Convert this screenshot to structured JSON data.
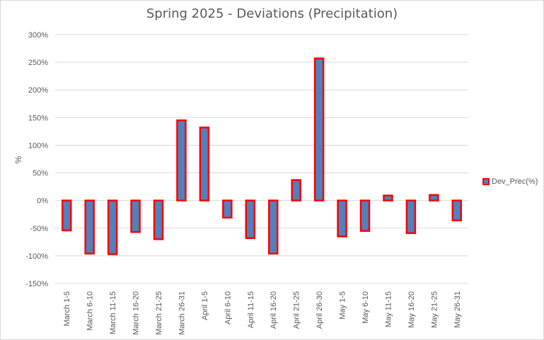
{
  "chart_data": {
    "type": "bar",
    "title": "Spring 2025 - Deviations (Precipitation)",
    "xlabel": "",
    "ylabel": "%",
    "ylim": [
      -150,
      300
    ],
    "yticks": [
      300,
      250,
      200,
      150,
      100,
      50,
      0,
      -50,
      -100,
      -150
    ],
    "ytick_labels": [
      "300%",
      "250%",
      "200%",
      "150%",
      "100%",
      "50%",
      "0%",
      "-50%",
      "-100%",
      "-150%"
    ],
    "grid": true,
    "legend_position": "right",
    "categories": [
      "March 1-5",
      "March 6-10",
      "March 11-15",
      "March 16-20",
      "March 21-25",
      "March 26-31",
      "April 1-5",
      "April 6-10",
      "April 11-15",
      "April 16-20",
      "April 21-25",
      "April 26-30",
      "May 1-5",
      "May 6-10",
      "May 11-15",
      "May 16-20",
      "May 21-25",
      "May 26-31"
    ],
    "series": [
      {
        "name": "Dev_Prec(%)",
        "fill_color": "#4f81bd",
        "border_color": "#ff0000",
        "values": [
          -54,
          -96,
          -97,
          -57,
          -70,
          145,
          132,
          -31,
          -68,
          -96,
          37,
          257,
          -65,
          -55,
          9,
          -59,
          10,
          -36
        ]
      }
    ]
  }
}
